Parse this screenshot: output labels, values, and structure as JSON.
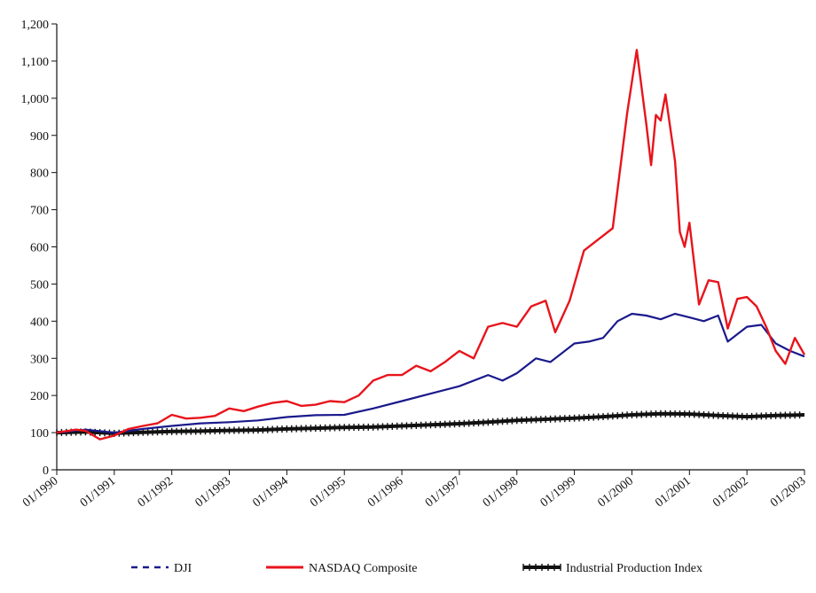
{
  "chart_data": {
    "type": "line",
    "title": "",
    "xlabel": "",
    "ylabel": "",
    "ylim": [
      0,
      1200
    ],
    "y_ticks": [
      0,
      100,
      200,
      300,
      400,
      500,
      600,
      700,
      800,
      900,
      1000,
      1100,
      1200
    ],
    "y_tick_labels": [
      "0",
      "100",
      "200",
      "300",
      "400",
      "500",
      "600",
      "700",
      "800",
      "900",
      "1,000",
      "1,100",
      "1,200"
    ],
    "x_range": [
      "1990-01",
      "2003-01"
    ],
    "x_tick_labels": [
      "01/1990",
      "01/1991",
      "01/1992",
      "01/1993",
      "01/1994",
      "01/1995",
      "01/1996",
      "01/1997",
      "01/1998",
      "01/1999",
      "01/2000",
      "01/2001",
      "01/2002",
      "01/2003"
    ],
    "grid": false,
    "legend_position": "bottom",
    "series": [
      {
        "name": "DJI",
        "color": "#1a1a8c",
        "style": "dashed-then-solid",
        "points": [
          [
            "1990-01",
            100
          ],
          [
            "1990-07",
            108
          ],
          [
            "1991-01",
            100
          ],
          [
            "1991-07",
            110
          ],
          [
            "1992-01",
            118
          ],
          [
            "1992-07",
            125
          ],
          [
            "1993-01",
            128
          ],
          [
            "1993-07",
            133
          ],
          [
            "1994-01",
            142
          ],
          [
            "1994-07",
            147
          ],
          [
            "1995-01",
            148
          ],
          [
            "1995-07",
            165
          ],
          [
            "1996-01",
            185
          ],
          [
            "1996-07",
            205
          ],
          [
            "1997-01",
            225
          ],
          [
            "1997-07",
            255
          ],
          [
            "1997-10",
            240
          ],
          [
            "1998-01",
            260
          ],
          [
            "1998-05",
            300
          ],
          [
            "1998-08",
            290
          ],
          [
            "1999-01",
            340
          ],
          [
            "1999-04",
            345
          ],
          [
            "1999-07",
            355
          ],
          [
            "1999-10",
            400
          ],
          [
            "2000-01",
            420
          ],
          [
            "2000-04",
            415
          ],
          [
            "2000-07",
            405
          ],
          [
            "2000-10",
            420
          ],
          [
            "2001-01",
            410
          ],
          [
            "2001-04",
            400
          ],
          [
            "2001-07",
            415
          ],
          [
            "2001-09",
            345
          ],
          [
            "2002-01",
            385
          ],
          [
            "2002-04",
            390
          ],
          [
            "2002-07",
            340
          ],
          [
            "2002-10",
            320
          ],
          [
            "2003-01",
            305
          ]
        ]
      },
      {
        "name": "NASDAQ Composite",
        "color": "#e8141c",
        "style": "solid",
        "points": [
          [
            "1990-01",
            100
          ],
          [
            "1990-05",
            108
          ],
          [
            "1990-07",
            105
          ],
          [
            "1990-10",
            82
          ],
          [
            "1991-01",
            92
          ],
          [
            "1991-04",
            110
          ],
          [
            "1991-07",
            118
          ],
          [
            "1991-10",
            125
          ],
          [
            "1992-01",
            148
          ],
          [
            "1992-04",
            138
          ],
          [
            "1992-07",
            140
          ],
          [
            "1992-10",
            145
          ],
          [
            "1993-01",
            165
          ],
          [
            "1993-04",
            158
          ],
          [
            "1993-07",
            170
          ],
          [
            "1993-10",
            180
          ],
          [
            "1994-01",
            185
          ],
          [
            "1994-04",
            172
          ],
          [
            "1994-07",
            175
          ],
          [
            "1994-10",
            185
          ],
          [
            "1995-01",
            182
          ],
          [
            "1995-04",
            200
          ],
          [
            "1995-07",
            240
          ],
          [
            "1995-10",
            255
          ],
          [
            "1996-01",
            255
          ],
          [
            "1996-04",
            280
          ],
          [
            "1996-07",
            265
          ],
          [
            "1996-10",
            290
          ],
          [
            "1997-01",
            320
          ],
          [
            "1997-04",
            300
          ],
          [
            "1997-07",
            385
          ],
          [
            "1997-10",
            395
          ],
          [
            "1998-01",
            385
          ],
          [
            "1998-04",
            440
          ],
          [
            "1998-07",
            455
          ],
          [
            "1998-09",
            370
          ],
          [
            "1998-12",
            455
          ],
          [
            "1999-03",
            590
          ],
          [
            "1999-06",
            620
          ],
          [
            "1999-09",
            650
          ],
          [
            "1999-12",
            960
          ],
          [
            "2000-02",
            1130
          ],
          [
            "2000-04",
            930
          ],
          [
            "2000-05",
            820
          ],
          [
            "2000-06",
            955
          ],
          [
            "2000-07",
            940
          ],
          [
            "2000-08",
            1010
          ],
          [
            "2000-10",
            830
          ],
          [
            "2000-11",
            640
          ],
          [
            "2000-12",
            600
          ],
          [
            "2001-01",
            665
          ],
          [
            "2001-03",
            445
          ],
          [
            "2001-05",
            510
          ],
          [
            "2001-07",
            505
          ],
          [
            "2001-09",
            380
          ],
          [
            "2001-11",
            460
          ],
          [
            "2002-01",
            465
          ],
          [
            "2002-03",
            440
          ],
          [
            "2002-05",
            385
          ],
          [
            "2002-07",
            320
          ],
          [
            "2002-09",
            285
          ],
          [
            "2002-11",
            355
          ],
          [
            "2003-01",
            310
          ]
        ]
      },
      {
        "name": "Industrial Production Index",
        "color": "#111111",
        "style": "solid-thick-markers",
        "points": [
          [
            "1990-01",
            100
          ],
          [
            "1990-07",
            102
          ],
          [
            "1991-01",
            98
          ],
          [
            "1991-07",
            101
          ],
          [
            "1992-01",
            103
          ],
          [
            "1992-07",
            104
          ],
          [
            "1993-01",
            106
          ],
          [
            "1993-07",
            107
          ],
          [
            "1994-01",
            110
          ],
          [
            "1994-07",
            112
          ],
          [
            "1995-01",
            114
          ],
          [
            "1995-07",
            115
          ],
          [
            "1996-01",
            118
          ],
          [
            "1996-07",
            121
          ],
          [
            "1997-01",
            124
          ],
          [
            "1997-07",
            128
          ],
          [
            "1998-01",
            133
          ],
          [
            "1998-07",
            136
          ],
          [
            "1999-01",
            139
          ],
          [
            "1999-07",
            143
          ],
          [
            "2000-01",
            148
          ],
          [
            "2000-07",
            151
          ],
          [
            "2001-01",
            150
          ],
          [
            "2001-07",
            146
          ],
          [
            "2002-01",
            143
          ],
          [
            "2002-07",
            146
          ],
          [
            "2003-01",
            148
          ]
        ]
      }
    ]
  }
}
